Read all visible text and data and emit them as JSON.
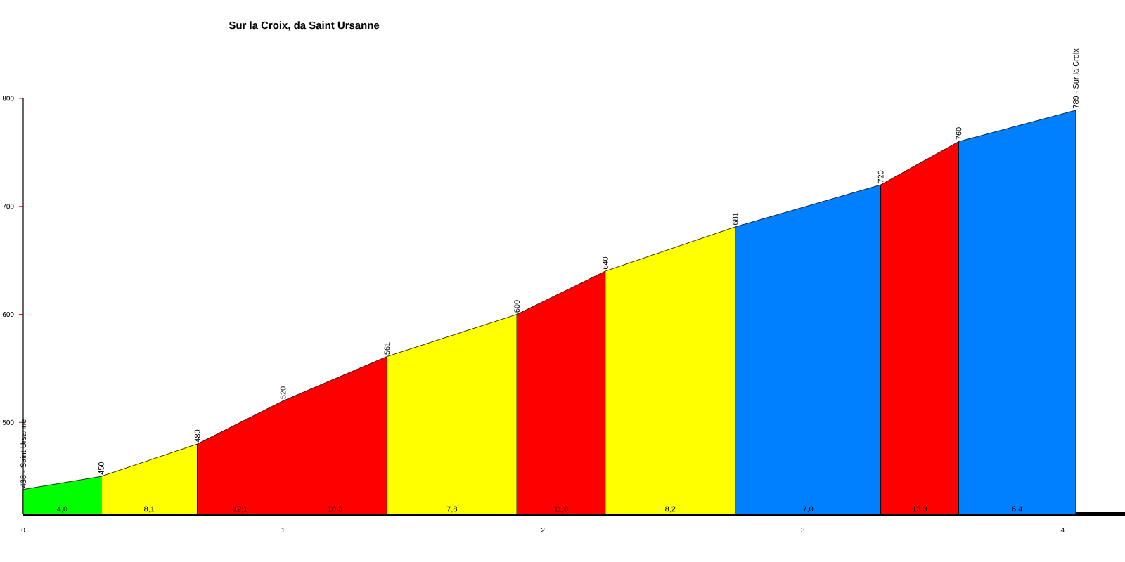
{
  "chart_data": {
    "type": "area",
    "title": "Sur la Croix, da Saint Ursanne",
    "series": [
      {
        "color": "#00ff00",
        "x": [
          0,
          0.3
        ],
        "values": [
          438,
          450
        ]
      },
      {
        "color": "#ffff00",
        "x": [
          0.3,
          0.67
        ],
        "values": [
          450,
          480
        ]
      },
      {
        "color": "#ff0000",
        "x": [
          0.67,
          1.0,
          1.4
        ],
        "values": [
          480,
          520,
          561
        ]
      },
      {
        "color": "#ffff00",
        "x": [
          1.4,
          1.9
        ],
        "values": [
          561,
          600
        ]
      },
      {
        "color": "#ff0000",
        "x": [
          1.9,
          2.24
        ],
        "values": [
          600,
          640
        ]
      },
      {
        "color": "#ffff00",
        "x": [
          2.24,
          2.74
        ],
        "values": [
          640,
          681
        ]
      },
      {
        "color": "#0080ff",
        "x": [
          2.74,
          3.3
        ],
        "values": [
          681,
          720
        ]
      },
      {
        "color": "#ff0000",
        "x": [
          3.3,
          3.6
        ],
        "values": [
          720,
          760
        ]
      },
      {
        "color": "#0080ff",
        "x": [
          3.6,
          4.05
        ],
        "values": [
          760,
          789
        ]
      }
    ],
    "xlim": [
      0,
      4.24
    ],
    "ylim": [
      415,
      800
    ],
    "xticks": [
      0,
      1,
      2,
      3,
      4
    ],
    "yticks": [
      500,
      600,
      700,
      800
    ],
    "annotations": [
      {
        "text": "438 - Saint Ursanne",
        "x": 0,
        "y": 438
      },
      {
        "text": "450",
        "x": 0.3,
        "y": 450
      },
      {
        "text": "480",
        "x": 0.67,
        "y": 480
      },
      {
        "text": "520",
        "x": 1.0,
        "y": 520
      },
      {
        "text": "561",
        "x": 1.4,
        "y": 561
      },
      {
        "text": "600",
        "x": 1.9,
        "y": 600
      },
      {
        "text": "640",
        "x": 2.24,
        "y": 640
      },
      {
        "text": "681",
        "x": 2.74,
        "y": 681
      },
      {
        "text": "720",
        "x": 3.3,
        "y": 720
      },
      {
        "text": "760",
        "x": 3.6,
        "y": 760
      },
      {
        "text": "789 - Sur la Croix",
        "x": 4.05,
        "y": 789
      },
      {
        "text": "4,0",
        "x": 0.15,
        "y": 415
      },
      {
        "text": "8,1",
        "x": 0.485,
        "y": 415
      },
      {
        "text": "12,1",
        "x": 0.835,
        "y": 415
      },
      {
        "text": "10,3",
        "x": 1.2,
        "y": 415
      },
      {
        "text": "7,8",
        "x": 1.65,
        "y": 415
      },
      {
        "text": "11,8",
        "x": 2.07,
        "y": 415
      },
      {
        "text": "8,2",
        "x": 2.49,
        "y": 415
      },
      {
        "text": "7,0",
        "x": 3.02,
        "y": 415
      },
      {
        "text": "13,3",
        "x": 3.45,
        "y": 415
      },
      {
        "text": "6,4",
        "x": 3.825,
        "y": 415
      }
    ]
  }
}
